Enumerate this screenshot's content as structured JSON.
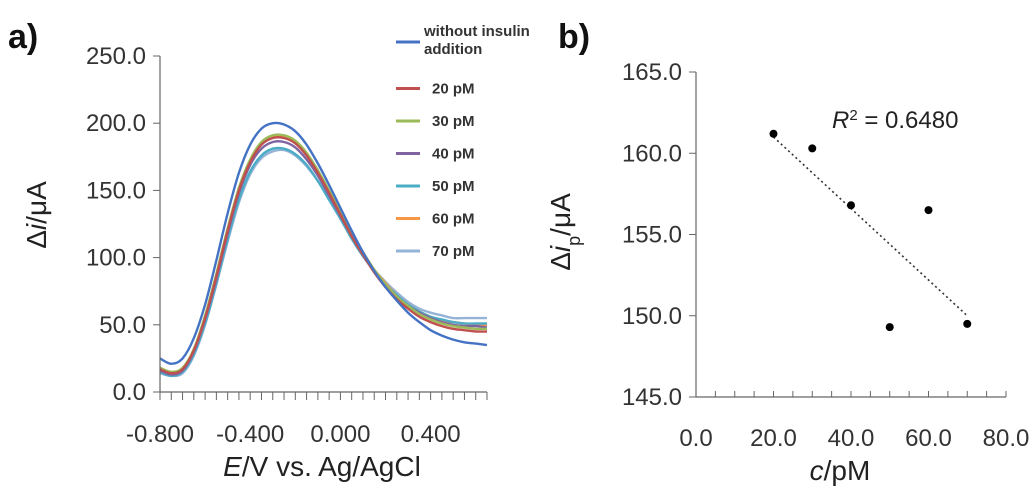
{
  "chart_data": [
    {
      "panel": "a)",
      "type": "line",
      "xlabel_italic": "E",
      "xlabel_rest": "/V vs. Ag/AgCl",
      "ylabel_prefix": "Δ",
      "ylabel_italic": "i",
      "ylabel_rest": "/μA",
      "xlim": [
        -0.8,
        0.65
      ],
      "ylim": [
        0,
        250
      ],
      "xticks": [
        -0.8,
        -0.4,
        0.0,
        0.4
      ],
      "xtick_labels": [
        "-0.800",
        "-0.400",
        "0.000",
        "0.400"
      ],
      "yticks": [
        0,
        50,
        100,
        150,
        200,
        250
      ],
      "ytick_labels": [
        "0.0",
        "50.0",
        "100.0",
        "150.0",
        "200.0",
        "250.0"
      ],
      "grid": false,
      "legend_position": "top-right",
      "series": [
        {
          "name": "without insulin addition",
          "color": "#4472c4",
          "x": [
            -0.8,
            -0.75,
            -0.7,
            -0.65,
            -0.6,
            -0.55,
            -0.5,
            -0.45,
            -0.4,
            -0.35,
            -0.3,
            -0.25,
            -0.2,
            -0.15,
            -0.1,
            -0.05,
            0.0,
            0.05,
            0.1,
            0.15,
            0.2,
            0.25,
            0.3,
            0.35,
            0.4,
            0.45,
            0.5,
            0.55,
            0.6,
            0.65
          ],
          "y": [
            25,
            21,
            25,
            40,
            65,
            98,
            133,
            163,
            184,
            196,
            200,
            199,
            194,
            184,
            170,
            154,
            137,
            120,
            104,
            90,
            78,
            68,
            59,
            52,
            46,
            42,
            39,
            37,
            36,
            35
          ]
        },
        {
          "name": "20 pM",
          "color": "#c0504d",
          "x": [
            -0.8,
            -0.75,
            -0.7,
            -0.65,
            -0.6,
            -0.55,
            -0.5,
            -0.45,
            -0.4,
            -0.35,
            -0.3,
            -0.25,
            -0.2,
            -0.15,
            -0.1,
            -0.05,
            0.0,
            0.05,
            0.1,
            0.15,
            0.2,
            0.25,
            0.3,
            0.35,
            0.4,
            0.45,
            0.5,
            0.55,
            0.6,
            0.65
          ],
          "y": [
            17,
            14,
            17,
            31,
            55,
            86,
            120,
            150,
            171,
            184,
            189,
            189,
            185,
            176,
            163,
            148,
            132,
            116,
            102,
            89,
            78,
            69,
            62,
            56,
            52,
            49,
            47,
            46,
            45,
            45
          ]
        },
        {
          "name": "30 pM",
          "color": "#9bbb59",
          "x": [
            -0.8,
            -0.75,
            -0.7,
            -0.65,
            -0.6,
            -0.55,
            -0.5,
            -0.45,
            -0.4,
            -0.35,
            -0.3,
            -0.25,
            -0.2,
            -0.15,
            -0.1,
            -0.05,
            0.0,
            0.05,
            0.1,
            0.15,
            0.2,
            0.25,
            0.3,
            0.35,
            0.4,
            0.45,
            0.5,
            0.55,
            0.6,
            0.65
          ],
          "y": [
            18,
            15,
            18,
            32,
            57,
            88,
            122,
            152,
            173,
            186,
            191,
            191,
            187,
            178,
            165,
            150,
            134,
            118,
            104,
            91,
            80,
            71,
            64,
            58,
            54,
            51,
            49,
            48,
            47,
            47
          ]
        },
        {
          "name": "40 pM",
          "color": "#8064a2",
          "x": [
            -0.8,
            -0.75,
            -0.7,
            -0.65,
            -0.6,
            -0.55,
            -0.5,
            -0.45,
            -0.4,
            -0.35,
            -0.3,
            -0.25,
            -0.2,
            -0.15,
            -0.1,
            -0.05,
            0.0,
            0.05,
            0.1,
            0.15,
            0.2,
            0.25,
            0.3,
            0.35,
            0.4,
            0.45,
            0.5,
            0.55,
            0.6,
            0.65
          ],
          "y": [
            16,
            13,
            16,
            30,
            54,
            84,
            118,
            148,
            169,
            181,
            186,
            186,
            182,
            173,
            161,
            146,
            131,
            116,
            102,
            90,
            79,
            71,
            64,
            59,
            55,
            52,
            50,
            49,
            49,
            48
          ]
        },
        {
          "name": "50 pM",
          "color": "#4bacc6",
          "x": [
            -0.8,
            -0.75,
            -0.7,
            -0.65,
            -0.6,
            -0.55,
            -0.5,
            -0.45,
            -0.4,
            -0.35,
            -0.3,
            -0.25,
            -0.2,
            -0.15,
            -0.1,
            -0.05,
            0.0,
            0.05,
            0.1,
            0.15,
            0.2,
            0.25,
            0.3,
            0.35,
            0.4,
            0.45,
            0.5,
            0.55,
            0.6,
            0.65
          ],
          "y": [
            15,
            12,
            15,
            28,
            51,
            81,
            114,
            143,
            164,
            176,
            181,
            181,
            177,
            169,
            157,
            143,
            129,
            114,
            101,
            90,
            80,
            72,
            65,
            60,
            56,
            54,
            52,
            51,
            51,
            51
          ]
        },
        {
          "name": "60 pM",
          "color": "#f79646",
          "x": [
            -0.8,
            -0.75,
            -0.7,
            -0.65,
            -0.6,
            -0.55,
            -0.5,
            -0.45,
            -0.4,
            -0.35,
            -0.3,
            -0.25,
            -0.2,
            -0.15,
            -0.1,
            -0.05,
            0.0,
            0.05,
            0.1,
            0.15,
            0.2,
            0.25,
            0.3,
            0.35,
            0.4,
            0.45,
            0.5,
            0.55,
            0.6,
            0.65
          ],
          "y": [
            17,
            14,
            17,
            31,
            56,
            87,
            121,
            151,
            172,
            185,
            190,
            190,
            186,
            177,
            164,
            149,
            133,
            118,
            104,
            91,
            81,
            72,
            65,
            60,
            56,
            53,
            52,
            51,
            50,
            50
          ]
        },
        {
          "name": "70 pM",
          "color": "#95b3d7",
          "x": [
            -0.8,
            -0.75,
            -0.7,
            -0.65,
            -0.6,
            -0.55,
            -0.5,
            -0.45,
            -0.4,
            -0.35,
            -0.3,
            -0.25,
            -0.2,
            -0.15,
            -0.1,
            -0.05,
            0.0,
            0.05,
            0.1,
            0.15,
            0.2,
            0.25,
            0.3,
            0.35,
            0.4,
            0.45,
            0.5,
            0.55,
            0.6,
            0.65
          ],
          "y": [
            14,
            12,
            14,
            27,
            50,
            80,
            112,
            141,
            162,
            174,
            179,
            180,
            176,
            168,
            157,
            143,
            129,
            115,
            102,
            91,
            82,
            74,
            67,
            62,
            59,
            57,
            55,
            55,
            55,
            55
          ]
        }
      ]
    },
    {
      "panel": "b)",
      "type": "scatter",
      "xlabel_italic": "c",
      "xlabel_rest": "/pM",
      "ylabel_prefix": "Δ",
      "ylabel_italic": "i",
      "ylabel_sub": "p",
      "ylabel_rest": "/μA",
      "xlim": [
        0,
        80
      ],
      "ylim": [
        145,
        165
      ],
      "xticks": [
        0,
        20,
        40,
        60,
        80
      ],
      "xtick_labels": [
        "0.0",
        "20.0",
        "40.0",
        "60.0",
        "80.0"
      ],
      "yticks": [
        145,
        150,
        155,
        160,
        165
      ],
      "ytick_labels": [
        "145.0",
        "150.0",
        "155.0",
        "160.0",
        "165.0"
      ],
      "grid": false,
      "points_color": "#000000",
      "x": [
        20,
        30,
        40,
        50,
        60,
        70
      ],
      "y": [
        161.2,
        160.3,
        156.8,
        149.3,
        156.5,
        149.5
      ],
      "trendline": {
        "style": "dotted",
        "x": [
          20,
          70
        ],
        "y": [
          161.0,
          150.0
        ]
      },
      "annotation": {
        "italic": "R",
        "sup": "2",
        "rest": " = 0.6480"
      }
    }
  ]
}
